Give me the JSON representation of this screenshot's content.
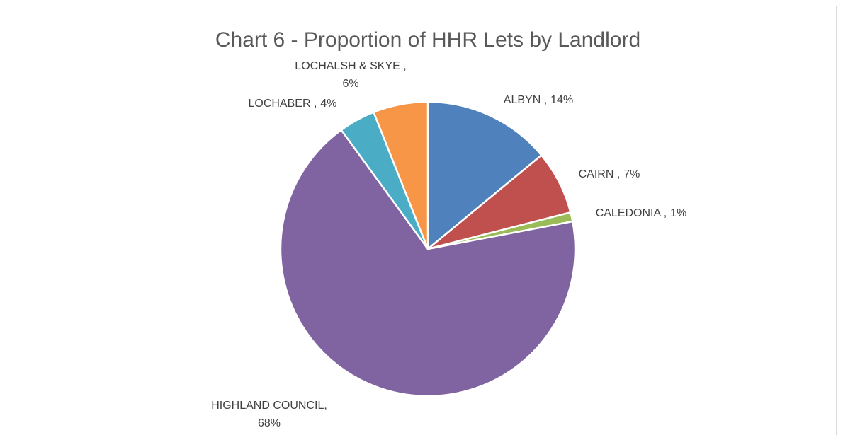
{
  "chart_data": {
    "type": "pie",
    "title": "Chart 6 - Proportion of HHR Lets by Landlord",
    "categories": [
      "ALBYN ,",
      "CAIRN ,",
      "CALEDONIA ,",
      "HIGHLAND COUNCIL,",
      "LOCHABER ,",
      "LOCHALSH & SKYE ,"
    ],
    "values": [
      14,
      7,
      1,
      68,
      4,
      6
    ],
    "value_labels": [
      "14%",
      "7%",
      "1%",
      "68%",
      "4%",
      "6%"
    ],
    "colors": [
      "#4f81bd",
      "#c0504d",
      "#9bbb59",
      "#8064a2",
      "#4bacc6",
      "#f79646"
    ]
  }
}
